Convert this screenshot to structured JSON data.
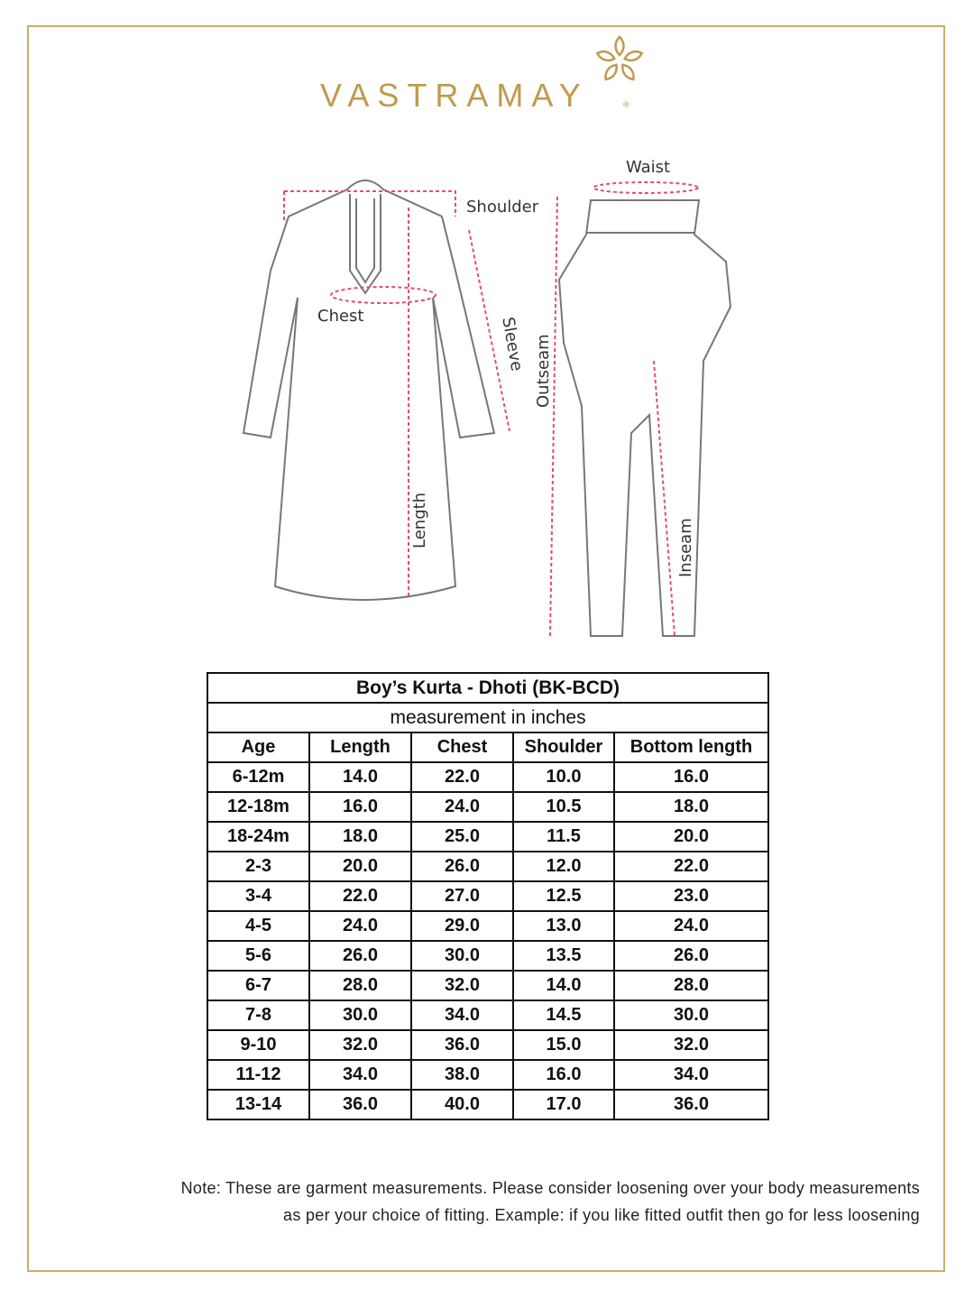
{
  "brand": {
    "name": "VASTRAMAY",
    "registered": "®",
    "color": "#c19a4e"
  },
  "diagram": {
    "kurta_labels": {
      "shoulder": "Shoulder",
      "chest": "Chest",
      "sleeve": "Sleeve",
      "length": "Length"
    },
    "dhoti_labels": {
      "waist": "Waist",
      "outseam": "Outseam",
      "inseam": "Inseam"
    },
    "measure_line_color": "#e0506a"
  },
  "table": {
    "title": "Boy’s Kurta - Dhoti (BK-BCD)",
    "subtitle": "measurement in inches",
    "headers": [
      "Age",
      "Length",
      "Chest",
      "Shoulder",
      "Bottom length"
    ],
    "rows": [
      [
        "6-12m",
        "14.0",
        "22.0",
        "10.0",
        "16.0"
      ],
      [
        "12-18m",
        "16.0",
        "24.0",
        "10.5",
        "18.0"
      ],
      [
        "18-24m",
        "18.0",
        "25.0",
        "11.5",
        "20.0"
      ],
      [
        "2-3",
        "20.0",
        "26.0",
        "12.0",
        "22.0"
      ],
      [
        "3-4",
        "22.0",
        "27.0",
        "12.5",
        "23.0"
      ],
      [
        "4-5",
        "24.0",
        "29.0",
        "13.0",
        "24.0"
      ],
      [
        "5-6",
        "26.0",
        "30.0",
        "13.5",
        "26.0"
      ],
      [
        "6-7",
        "28.0",
        "32.0",
        "14.0",
        "28.0"
      ],
      [
        "7-8",
        "30.0",
        "34.0",
        "14.5",
        "30.0"
      ],
      [
        "9-10",
        "32.0",
        "36.0",
        "15.0",
        "32.0"
      ],
      [
        "11-12",
        "34.0",
        "38.0",
        "16.0",
        "34.0"
      ],
      [
        "13-14",
        "36.0",
        "40.0",
        "17.0",
        "36.0"
      ]
    ]
  },
  "note": {
    "line1": "Note: These are garment measurements. Please consider loosening over your body measurements",
    "line2": "as per your choice of fitting. Example: if you like fitted outfit then go for less loosening"
  }
}
